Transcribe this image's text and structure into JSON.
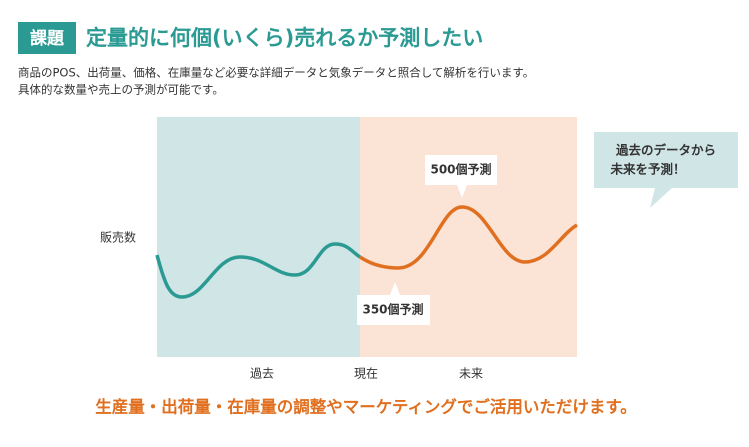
{
  "header": {
    "badge": "課題",
    "title": "定量的に何個(いくら)売れるか予測したい"
  },
  "description": [
    "商品のPOS、出荷量、価格、在庫量など必要な詳細データと気象データと照合して解析を行います。",
    "具体的な数量や売上の予測が可能です。"
  ],
  "illustration": {
    "y_label": "販売数",
    "callouts": [
      "500個予測",
      "350個予測"
    ],
    "bubble": [
      "過去のデータから",
      "未来を予測！"
    ],
    "x_labels": [
      "過去",
      "現在",
      "未来"
    ]
  },
  "footer": "生産量・出荷量・在庫量の調整やマーケティングでご活用いただけます。"
}
